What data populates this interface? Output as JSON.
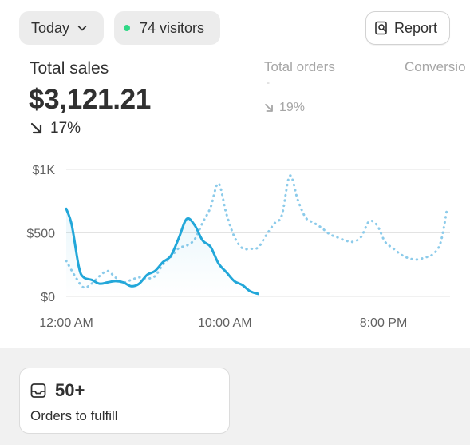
{
  "toolbar": {
    "date_range": "Today",
    "visitors": "74 visitors",
    "report_label": "Report",
    "live_color": "#2fd886"
  },
  "metrics": {
    "total_sales": {
      "label": "Total sales",
      "value": "$3,121.21",
      "change": "17%",
      "direction": "down"
    },
    "total_orders": {
      "label": "Total orders",
      "value": "-",
      "change": "19%",
      "direction": "down"
    },
    "conversion": {
      "label": "Conversio"
    }
  },
  "chart_data": {
    "type": "line",
    "x_tick_labels": [
      "12:00 AM",
      "10:00 AM",
      "8:00 PM"
    ],
    "y_tick_labels": [
      "$1K",
      "$500",
      "$0"
    ],
    "ylim": [
      0,
      1000
    ],
    "x_unit": "hour of day",
    "grid": true,
    "series": [
      {
        "style": "solid",
        "color": "#22a7d9",
        "points": [
          [
            0,
            690
          ],
          [
            0.35,
            560
          ],
          [
            0.8,
            230
          ],
          [
            1.1,
            150
          ],
          [
            1.6,
            130
          ],
          [
            2.1,
            100
          ],
          [
            2.6,
            110
          ],
          [
            3.1,
            120
          ],
          [
            3.6,
            110
          ],
          [
            4.1,
            80
          ],
          [
            4.6,
            100
          ],
          [
            5.1,
            170
          ],
          [
            5.6,
            200
          ],
          [
            6.1,
            270
          ],
          [
            6.6,
            320
          ],
          [
            7.1,
            460
          ],
          [
            7.6,
            610
          ],
          [
            8.1,
            560
          ],
          [
            8.6,
            440
          ],
          [
            9.1,
            390
          ],
          [
            9.6,
            260
          ],
          [
            10.1,
            190
          ],
          [
            10.6,
            120
          ],
          [
            11.1,
            90
          ],
          [
            11.6,
            40
          ],
          [
            12.1,
            20
          ]
        ]
      },
      {
        "style": "dotted",
        "color": "#8ccbea",
        "points": [
          [
            0,
            280
          ],
          [
            0.6,
            150
          ],
          [
            1.1,
            70
          ],
          [
            1.6,
            100
          ],
          [
            2.1,
            160
          ],
          [
            2.6,
            200
          ],
          [
            3.1,
            150
          ],
          [
            3.6,
            110
          ],
          [
            4.1,
            130
          ],
          [
            4.6,
            150
          ],
          [
            5.1,
            140
          ],
          [
            5.6,
            160
          ],
          [
            6.1,
            250
          ],
          [
            6.6,
            310
          ],
          [
            7.1,
            380
          ],
          [
            7.6,
            400
          ],
          [
            8.1,
            450
          ],
          [
            8.6,
            580
          ],
          [
            9.1,
            700
          ],
          [
            9.6,
            890
          ],
          [
            10.1,
            650
          ],
          [
            10.6,
            470
          ],
          [
            11.1,
            380
          ],
          [
            11.6,
            375
          ],
          [
            12.1,
            385
          ],
          [
            12.6,
            480
          ],
          [
            13.1,
            570
          ],
          [
            13.6,
            640
          ],
          [
            14.1,
            950
          ],
          [
            14.6,
            760
          ],
          [
            15.1,
            620
          ],
          [
            15.6,
            580
          ],
          [
            16.1,
            540
          ],
          [
            16.6,
            490
          ],
          [
            17.1,
            465
          ],
          [
            17.6,
            440
          ],
          [
            18.1,
            430
          ],
          [
            18.6,
            470
          ],
          [
            19.1,
            590
          ],
          [
            19.6,
            560
          ],
          [
            20.1,
            430
          ],
          [
            20.6,
            380
          ],
          [
            21.1,
            330
          ],
          [
            21.6,
            300
          ],
          [
            22.1,
            290
          ],
          [
            22.6,
            305
          ],
          [
            23.1,
            330
          ],
          [
            23.6,
            420
          ],
          [
            24,
            680
          ]
        ]
      }
    ]
  },
  "fulfill": {
    "count": "50+",
    "label": "Orders to fulfill"
  }
}
